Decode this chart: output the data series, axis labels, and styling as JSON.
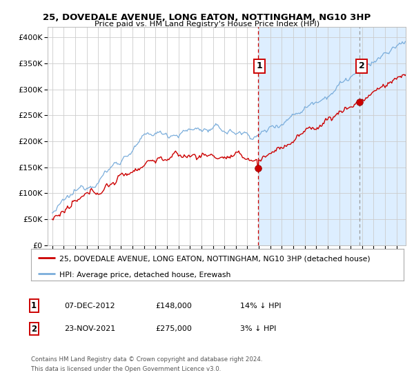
{
  "title1": "25, DOVEDALE AVENUE, LONG EATON, NOTTINGHAM, NG10 3HP",
  "title2": "Price paid vs. HM Land Registry's House Price Index (HPI)",
  "legend_line1": "25, DOVEDALE AVENUE, LONG EATON, NOTTINGHAM, NG10 3HP (detached house)",
  "legend_line2": "HPI: Average price, detached house, Erewash",
  "annotation1_label": "1",
  "annotation1_date": "07-DEC-2012",
  "annotation1_price": "£148,000",
  "annotation1_hpi": "14% ↓ HPI",
  "annotation2_label": "2",
  "annotation2_date": "23-NOV-2021",
  "annotation2_price": "£275,000",
  "annotation2_hpi": "3% ↓ HPI",
  "footer1": "Contains HM Land Registry data © Crown copyright and database right 2024.",
  "footer2": "This data is licensed under the Open Government Licence v3.0.",
  "red_line_color": "#cc0000",
  "blue_line_color": "#7aaddb",
  "shaded_color": "#ddeeff",
  "grid_color": "#cccccc",
  "vline1_color": "#cc0000",
  "vline2_color": "#999999",
  "ylim": [
    0,
    420000
  ],
  "yticks": [
    0,
    50000,
    100000,
    150000,
    200000,
    250000,
    300000,
    350000,
    400000
  ],
  "start_year": 1995,
  "end_year": 2025
}
